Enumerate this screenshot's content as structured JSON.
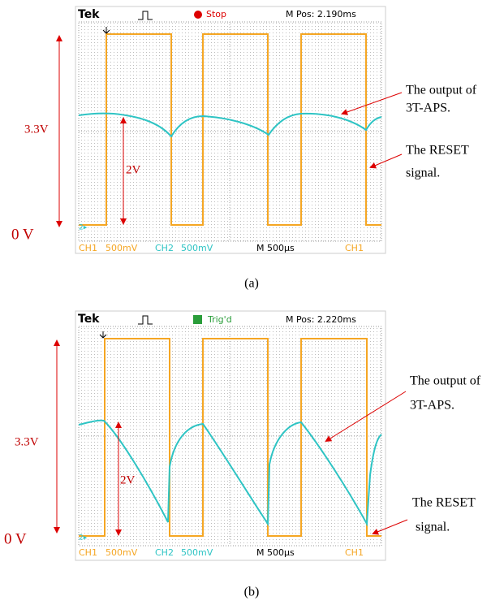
{
  "panels": [
    {
      "brand": "Tek",
      "status": "Stop",
      "m_pos": "M Pos: 2.190ms",
      "ch1": "CH1",
      "ch1_scale": "500mV",
      "ch2": "CH2",
      "ch2_scale": "500mV",
      "timebase": "M 500µs",
      "trigger_source": "CH1",
      "label_full": "3.3V",
      "label_swing": "2V",
      "label_zero": "0 V",
      "annotation_output": [
        "The output of",
        "3T-APS."
      ],
      "annotation_reset": [
        "The RESET",
        "signal."
      ],
      "caption": "(a)"
    },
    {
      "brand": "Tek",
      "status": "Trig'd",
      "m_pos": "M Pos: 2.220ms",
      "ch1": "CH1",
      "ch1_scale": "500mV",
      "ch2": "CH2",
      "ch2_scale": "500mV",
      "timebase": "M 500µs",
      "trigger_source": "CH1",
      "label_full": "3.3V",
      "label_swing": "2V",
      "label_zero": "0 V",
      "annotation_output": [
        "The output of",
        "3T-APS."
      ],
      "annotation_reset": [
        "The RESET",
        "signal."
      ],
      "caption": "(b)"
    }
  ]
}
